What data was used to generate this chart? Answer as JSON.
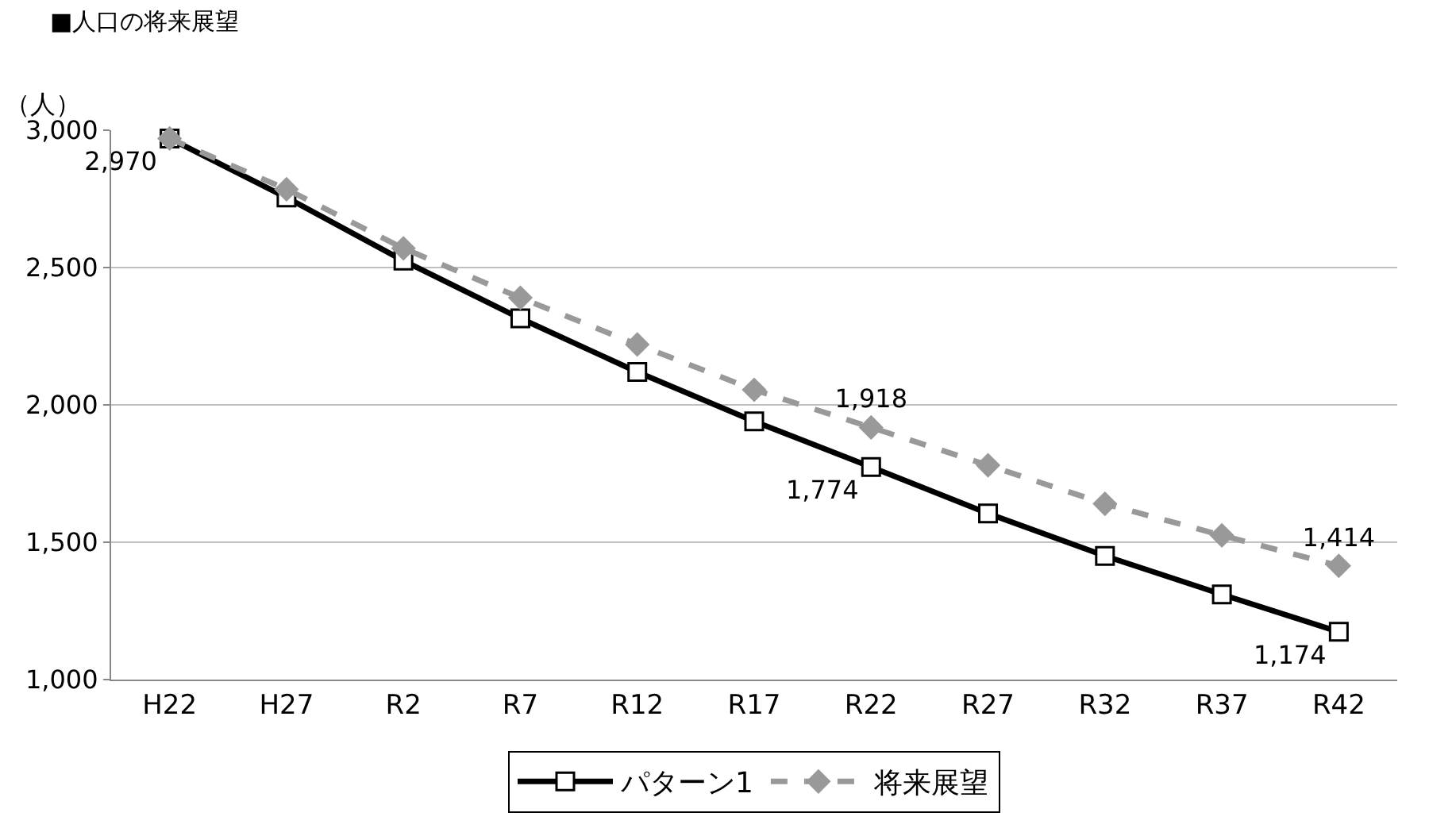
{
  "chart_data": {
    "type": "line",
    "title": "■人口の将来展望",
    "ylabel": "（人）",
    "categories": [
      "H22",
      "H27",
      "R2",
      "R7",
      "R12",
      "R17",
      "R22",
      "R27",
      "R32",
      "R37",
      "R42"
    ],
    "series": [
      {
        "name": "パターン1",
        "color": "#000000",
        "marker": "square",
        "line_style": "solid",
        "values": [
          2970,
          2755,
          2525,
          2315,
          2120,
          1940,
          1774,
          1605,
          1450,
          1310,
          1174
        ],
        "value_labels": [
          "2,970",
          null,
          null,
          null,
          null,
          null,
          "1,774",
          null,
          null,
          null,
          "1,174"
        ]
      },
      {
        "name": "将来展望",
        "color": "#999999",
        "marker": "diamond",
        "line_style": "dashed",
        "values": [
          2970,
          2785,
          2570,
          2390,
          2220,
          2055,
          1918,
          1780,
          1640,
          1525,
          1414
        ],
        "value_labels": [
          null,
          null,
          null,
          null,
          null,
          null,
          "1,918",
          null,
          null,
          null,
          "1,414"
        ]
      }
    ],
    "ylim": [
      1000,
      3000
    ],
    "yticks": [
      {
        "value": 1000,
        "label": "1,000"
      },
      {
        "value": 1500,
        "label": "1,500"
      },
      {
        "value": 2000,
        "label": "2,000"
      },
      {
        "value": 2500,
        "label": "2,500"
      },
      {
        "value": 3000,
        "label": "3,000"
      }
    ],
    "grid": "y",
    "legend": "bottom"
  }
}
